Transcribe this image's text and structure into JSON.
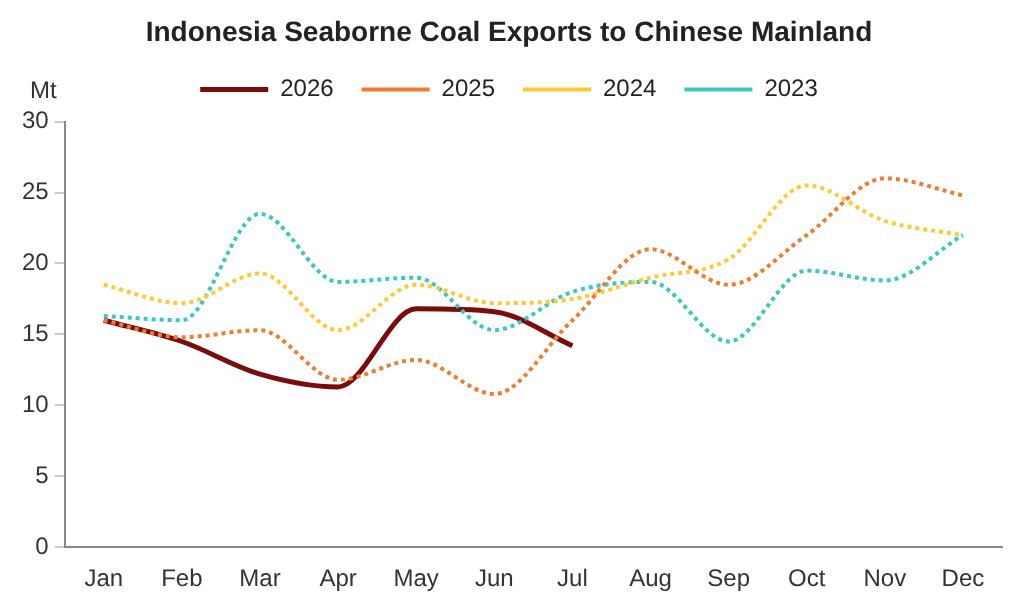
{
  "chart_data": {
    "type": "line",
    "title": "Indonesia Seaborne Coal Exports to Chinese Mainland",
    "ylabel": "Mt",
    "categories": [
      "Jan",
      "Feb",
      "Mar",
      "Apr",
      "May",
      "Jun",
      "Jul",
      "Aug",
      "Sep",
      "Oct",
      "Nov",
      "Dec"
    ],
    "series": [
      {
        "name": "2026",
        "color": "#7b0c0c",
        "line_style": "solid",
        "values": [
          16,
          14.5,
          12.2,
          11.3,
          16.8,
          16.6,
          14.2,
          null,
          null,
          null,
          null,
          null
        ]
      },
      {
        "name": "2025",
        "color": "#ed7d31",
        "line_style": "dotted",
        "values": [
          16,
          14.8,
          15.3,
          11.8,
          13.2,
          10.8,
          16,
          21,
          18.5,
          22,
          26,
          24.8
        ]
      },
      {
        "name": "2024",
        "color": "#ffc933",
        "line_style": "dotted",
        "values": [
          18.5,
          17.2,
          19.3,
          15.3,
          18.5,
          17.2,
          17.5,
          19,
          20.3,
          25.5,
          23,
          22
        ]
      },
      {
        "name": "2023",
        "color": "#3cc8c0",
        "line_style": "dotted",
        "values": [
          16.3,
          16,
          23.5,
          18.7,
          19,
          15.3,
          18,
          18.7,
          14.5,
          19.5,
          18.8,
          22
        ]
      }
    ],
    "ylim": [
      0,
      30
    ],
    "yticks": [
      0,
      5,
      10,
      15,
      20,
      25,
      30
    ],
    "grid": false,
    "legend": "top",
    "marker": "none"
  }
}
